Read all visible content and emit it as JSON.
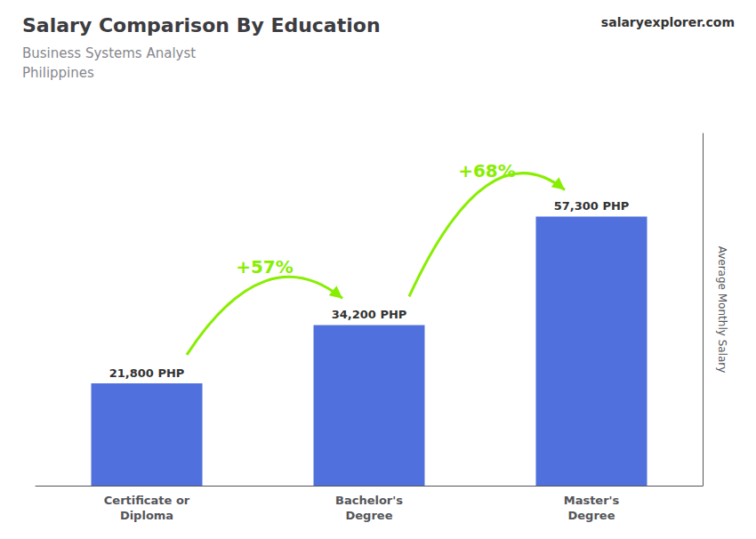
{
  "chart_data": {
    "type": "bar",
    "title": "Salary Comparison By Education",
    "subtitle": [
      "Business Systems Analyst",
      "Philippines"
    ],
    "ylabel": "Average Monthly Salary",
    "categories": [
      "Certificate or\nDiploma",
      "Bachelor's\nDegree",
      "Master's\nDegree"
    ],
    "values": [
      21800,
      34200,
      57300
    ],
    "value_labels": [
      "21,800 PHP",
      "34,200 PHP",
      "57,300 PHP"
    ],
    "data_labels": true,
    "ylim": [
      0,
      75000
    ],
    "tick_labels": "x",
    "grid": false,
    "annotations": [
      {
        "text": "+57%",
        "from": "Certificate or\nDiploma",
        "to": "Bachelor's\nDegree",
        "color": "#88ee00"
      },
      {
        "text": "+68%",
        "from": "Bachelor's\nDegree",
        "to": "Master's\nDegree",
        "color": "#88ee00"
      },
      {
        "text": "salaryexplorer.com"
      }
    ]
  }
}
